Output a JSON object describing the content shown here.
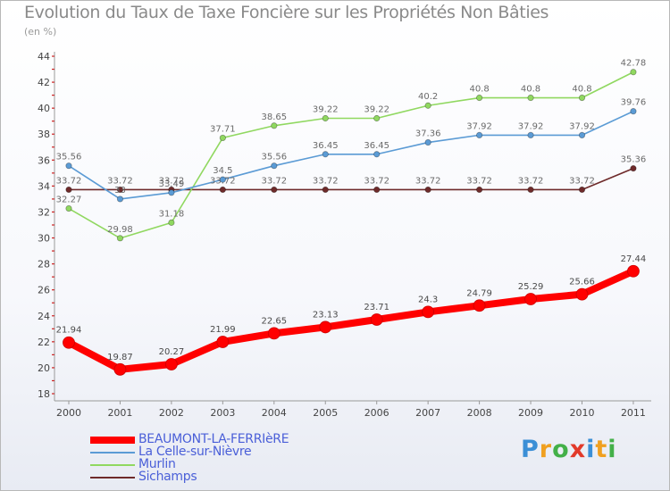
{
  "header": {
    "title": "Evolution du Taux de Taxe Foncière sur les Propriétés Non Bâties",
    "subtitle": "(en %)"
  },
  "brand": {
    "text": "Proxiti",
    "letters": [
      "P",
      "r",
      "o",
      "x",
      "i",
      "t",
      "i"
    ],
    "colors": [
      "#3b8fd6",
      "#f0a020",
      "#43b048",
      "#e23a2a",
      "#3b8fd6",
      "#f0a020",
      "#43b048"
    ]
  },
  "chart_data": {
    "type": "line",
    "title": "Evolution du Taux de Taxe Foncière sur les Propriétés Non Bâties",
    "ylabel": "(en %)",
    "xlabel": "",
    "ylim": [
      18,
      44
    ],
    "yticks": [
      18,
      20,
      22,
      24,
      26,
      28,
      30,
      32,
      34,
      36,
      38,
      40,
      42,
      44
    ],
    "grid": false,
    "legend_position": "bottom-left",
    "categories": [
      "2000",
      "2001",
      "2002",
      "2003",
      "2004",
      "2005",
      "2006",
      "2007",
      "2008",
      "2009",
      "2010",
      "2011"
    ],
    "series": [
      {
        "name": "Sichamps",
        "color": "#6e2a2a",
        "values": [
          33.72,
          33.72,
          33.72,
          33.72,
          33.72,
          33.72,
          33.72,
          33.72,
          33.72,
          33.72,
          33.72,
          35.36
        ],
        "labels": [
          "33.72",
          "33.72",
          "33.72",
          "33.72",
          "33.72",
          "33.72",
          "33.72",
          "33.72",
          "33.72",
          "33.72",
          "33.72",
          "35.36"
        ]
      },
      {
        "name": "Murlin",
        "color": "#90d860",
        "values": [
          32.27,
          29.98,
          31.18,
          37.71,
          38.65,
          39.22,
          39.22,
          40.2,
          40.8,
          40.8,
          40.8,
          42.78
        ],
        "labels": [
          "32.27",
          "29.98",
          "31.18",
          "37.71",
          "38.65",
          "39.22",
          "39.22",
          "40.2",
          "40.8",
          "40.8",
          "40.8",
          "42.78"
        ]
      },
      {
        "name": "La Celle-sur-Nièvre",
        "color": "#5b9bd5",
        "values": [
          35.56,
          33,
          33.49,
          34.5,
          35.56,
          36.45,
          36.45,
          37.36,
          37.92,
          37.92,
          37.92,
          39.76
        ],
        "labels": [
          "35.56",
          "33",
          "33.49",
          "34.5",
          "35.56",
          "36.45",
          "36.45",
          "37.36",
          "37.92",
          "37.92",
          "37.92",
          "39.76"
        ]
      },
      {
        "name": "BEAUMONT-LA-FERRIèRE",
        "color": "#ff0000",
        "values": [
          21.94,
          19.87,
          20.27,
          21.99,
          22.65,
          23.13,
          23.71,
          24.3,
          24.79,
          25.29,
          25.66,
          27.44
        ],
        "labels": [
          "21.94",
          "19.87",
          "20.27",
          "21.99",
          "22.65",
          "23.13",
          "23.71",
          "24.3",
          "24.79",
          "25.29",
          "25.66",
          "27.44"
        ]
      }
    ]
  }
}
